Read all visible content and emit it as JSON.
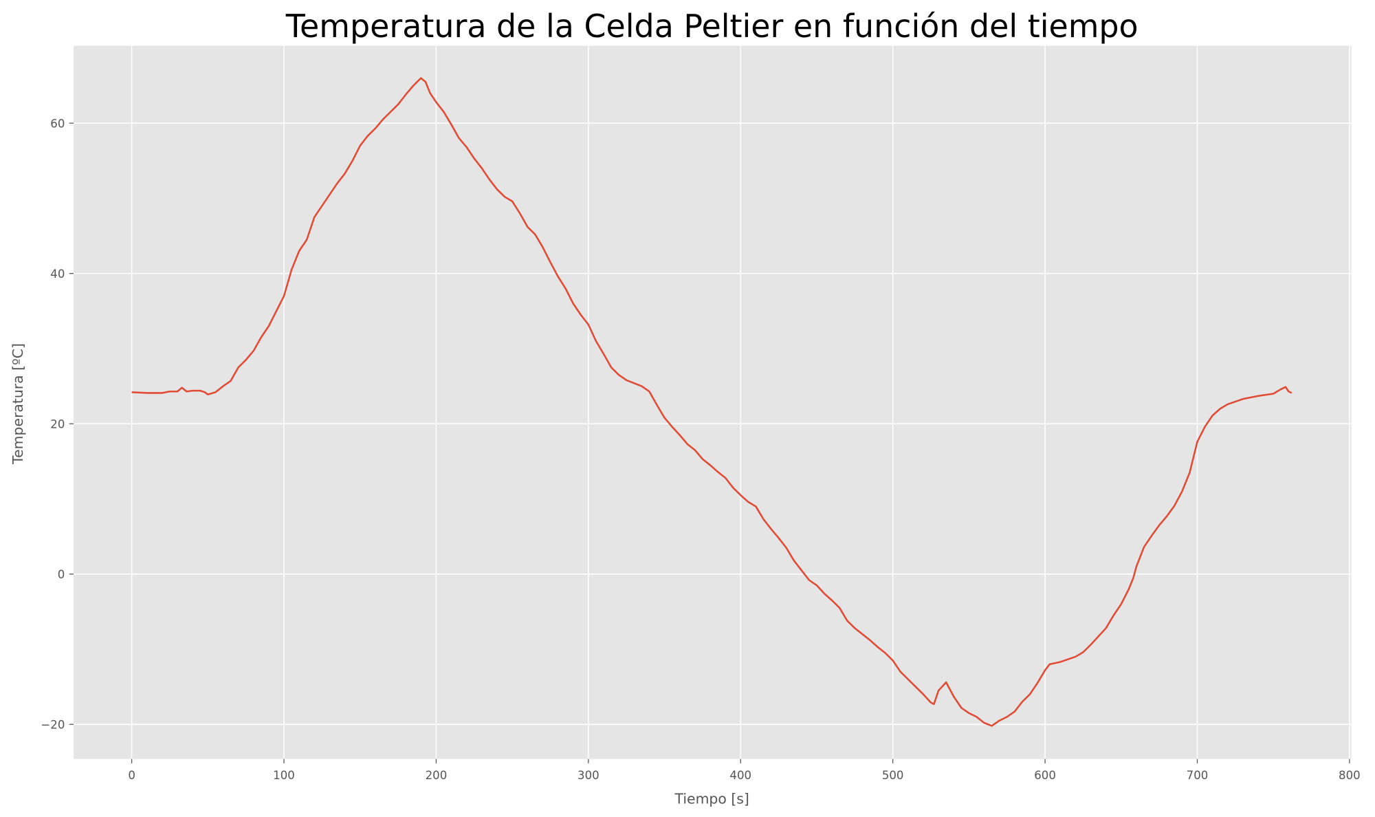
{
  "chart_data": {
    "type": "line",
    "title": "Temperatura de la Celda Peltier en función del tiempo",
    "x_label": "Tiempo [s]",
    "y_label": "Temperatura [ºC]",
    "x": [
      0,
      10,
      20,
      25,
      30,
      33,
      36,
      40,
      45,
      48,
      50,
      55,
      60,
      65,
      70,
      75,
      80,
      85,
      90,
      95,
      100,
      105,
      110,
      115,
      120,
      125,
      130,
      135,
      140,
      145,
      150,
      155,
      160,
      165,
      170,
      175,
      180,
      185,
      190,
      193,
      196,
      200,
      205,
      210,
      215,
      220,
      225,
      230,
      235,
      240,
      245,
      250,
      255,
      260,
      265,
      270,
      275,
      280,
      285,
      290,
      295,
      300,
      305,
      310,
      315,
      320,
      325,
      330,
      335,
      340,
      345,
      350,
      355,
      360,
      365,
      370,
      375,
      380,
      385,
      390,
      395,
      400,
      405,
      410,
      415,
      420,
      425,
      430,
      435,
      440,
      445,
      450,
      455,
      460,
      465,
      470,
      475,
      480,
      485,
      490,
      495,
      500,
      505,
      510,
      515,
      520,
      525,
      527,
      530,
      535,
      540,
      545,
      550,
      555,
      560,
      565,
      570,
      575,
      580,
      585,
      590,
      595,
      600,
      603,
      610,
      620,
      625,
      630,
      640,
      645,
      650,
      655,
      658,
      660,
      665,
      670,
      675,
      680,
      685,
      690,
      695,
      700,
      705,
      710,
      715,
      720,
      730,
      740,
      750,
      755,
      758,
      760,
      762
    ],
    "series": [
      {
        "name": "Temperatura",
        "color": "#e24a33",
        "values": [
          24.2,
          24.1,
          24.1,
          24.3,
          24.3,
          24.8,
          24.3,
          24.4,
          24.4,
          24.2,
          23.9,
          24.2,
          25,
          25.7,
          27.5,
          28.5,
          29.7,
          31.5,
          33,
          35,
          37,
          40.5,
          43,
          44.5,
          47.5,
          49,
          50.5,
          52,
          53.3,
          55,
          57,
          58.3,
          59.3,
          60.5,
          61.5,
          62.5,
          63.8,
          65,
          66,
          65.5,
          64,
          62.8,
          61.5,
          59.8,
          58,
          56.8,
          55.3,
          54,
          52.5,
          51.2,
          50.2,
          49.6,
          48,
          46.2,
          45.2,
          43.5,
          41.5,
          39.6,
          38,
          36,
          34.5,
          33.2,
          31,
          29.3,
          27.5,
          26.5,
          25.8,
          25.4,
          25,
          24.3,
          22.5,
          20.8,
          19.6,
          18.5,
          17.3,
          16.5,
          15.3,
          14.5,
          13.6,
          12.8,
          11.5,
          10.5,
          9.6,
          9,
          7.3,
          6,
          4.8,
          3.5,
          1.8,
          0.5,
          -0.8,
          -1.5,
          -2.6,
          -3.5,
          -4.5,
          -6.2,
          -7.2,
          -8,
          -8.8,
          -9.7,
          -10.5,
          -11.5,
          -13,
          -14,
          -15,
          -16,
          -17.1,
          -17.3,
          -15.5,
          -14.4,
          -16.3,
          -17.8,
          -18.5,
          -19,
          -19.8,
          -20.2,
          -19.5,
          -19,
          -18.3,
          -17,
          -16,
          -14.5,
          -12.8,
          -12,
          -11.7,
          -11,
          -10.4,
          -9.4,
          -7.2,
          -5.5,
          -4,
          -2,
          -0.5,
          1,
          3.6,
          5.1,
          6.5,
          7.7,
          9.1,
          11,
          13.5,
          17.6,
          19.6,
          21.1,
          22,
          22.6,
          23.3,
          23.7,
          24,
          24.6,
          24.9,
          24.3,
          24.1
        ]
      }
    ],
    "xlim": [
      -38.15,
      801.2
    ],
    "ylim": [
      -24.6,
      70.3
    ],
    "xticks": [
      0,
      100,
      200,
      300,
      400,
      500,
      600,
      700,
      800
    ],
    "yticks": [
      {
        "value": -20,
        "label": "−20"
      },
      0,
      20,
      40,
      60
    ],
    "grid": true,
    "background": "#e5e5e5"
  }
}
